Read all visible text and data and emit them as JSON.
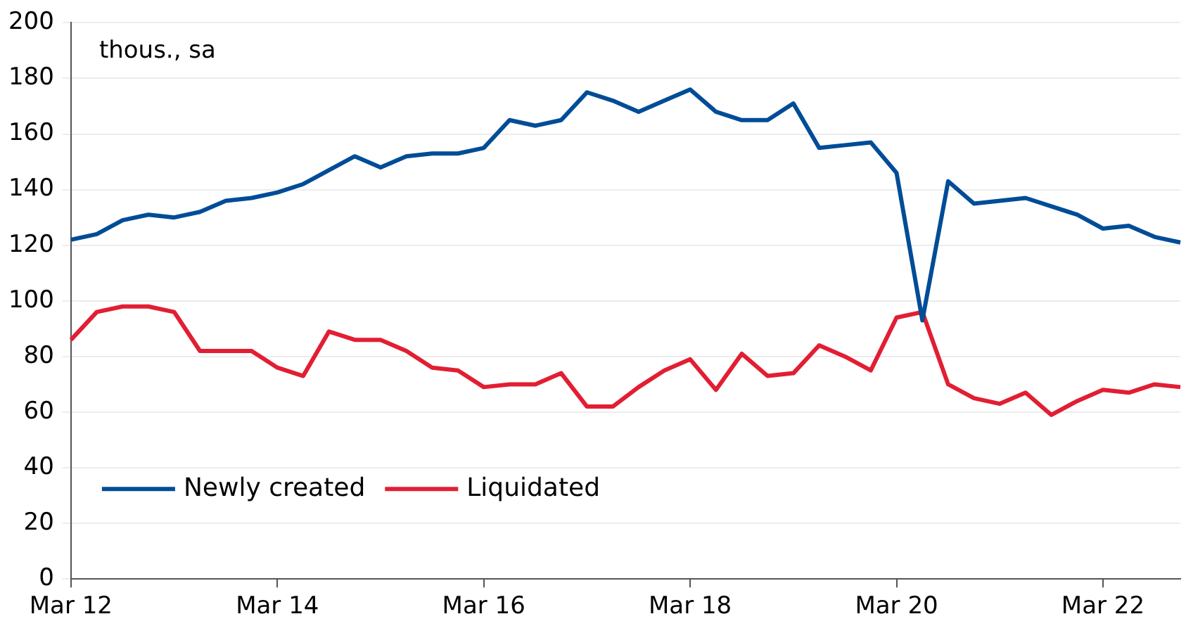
{
  "chart_data": {
    "type": "line",
    "categories": [
      "Mar 12",
      null,
      null,
      null,
      null,
      null,
      null,
      null,
      "Mar 14",
      null,
      null,
      null,
      null,
      null,
      null,
      null,
      "Mar 16",
      null,
      null,
      null,
      null,
      null,
      null,
      null,
      "Mar 18",
      null,
      null,
      null,
      null,
      null,
      null,
      null,
      "Mar 20",
      null,
      null,
      null,
      null,
      null,
      null,
      null,
      "Mar 22",
      null,
      null,
      null
    ],
    "series": [
      {
        "name": "Newly created",
        "color": "#004c97",
        "values": [
          122,
          124,
          129,
          131,
          130,
          132,
          136,
          137,
          139,
          142,
          147,
          152,
          148,
          152,
          153,
          153,
          155,
          165,
          163,
          165,
          175,
          172,
          168,
          172,
          176,
          168,
          165,
          165,
          171,
          155,
          156,
          157,
          146,
          93,
          143,
          135,
          136,
          137,
          134,
          131,
          126,
          127,
          123,
          121
        ]
      },
      {
        "name": "Liquidated",
        "color": "#e21e33",
        "values": [
          86,
          96,
          98,
          98,
          96,
          82,
          82,
          82,
          76,
          73,
          89,
          86,
          86,
          82,
          76,
          75,
          69,
          70,
          70,
          74,
          62,
          62,
          69,
          75,
          79,
          68,
          81,
          73,
          74,
          84,
          80,
          75,
          94,
          96,
          70,
          65,
          63,
          67,
          59,
          64,
          68,
          67,
          70,
          69
        ]
      }
    ],
    "ylim": [
      0,
      200
    ],
    "yticks": [
      0,
      20,
      40,
      60,
      80,
      100,
      120,
      140,
      160,
      180,
      200
    ],
    "grid": "y",
    "legend": "bottom left",
    "marker": "none",
    "line_style": "solid",
    "annotations": [
      "thous., sa"
    ]
  }
}
